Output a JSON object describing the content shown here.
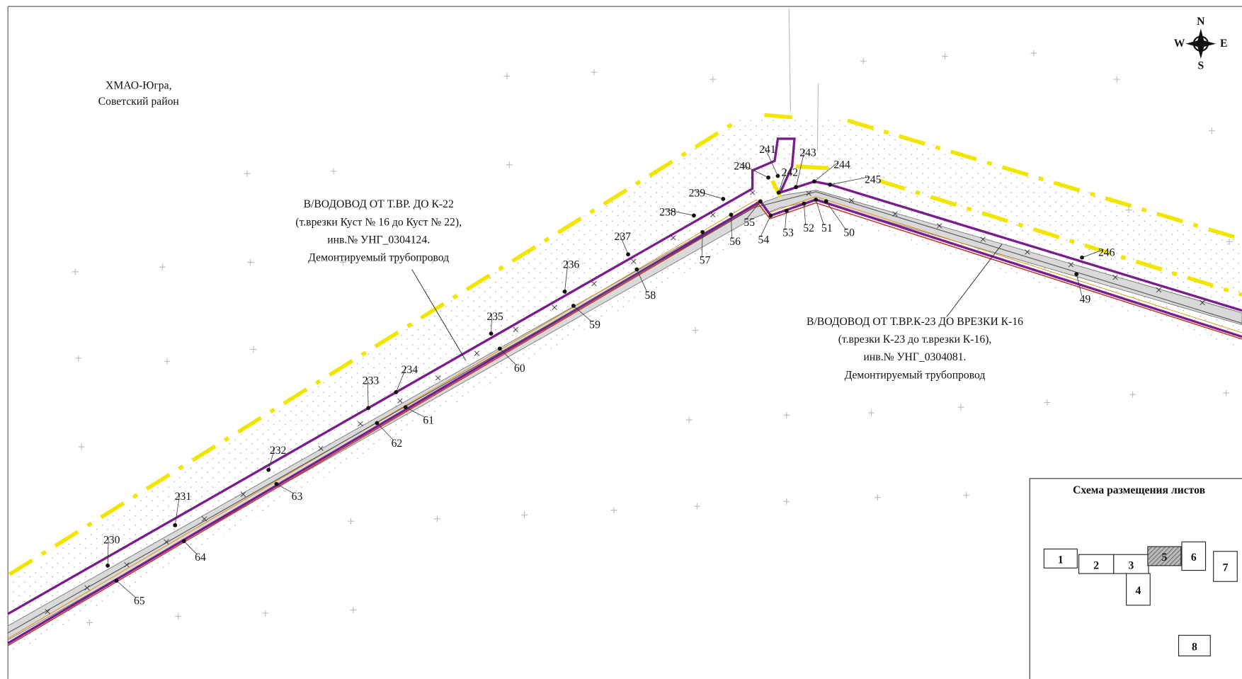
{
  "region": [
    "ХМАО-Югра,",
    "Советский район"
  ],
  "pipelines": [
    {
      "lines": [
        "В/ВОДОВОД ОТ Т.ВР. ДО К-22",
        "(т.врезки Куст № 16 до Куст № 22),",
        "инв.№ УНГ_0304124.",
        "Демонтируемый трубопровод"
      ]
    },
    {
      "lines": [
        "В/ВОДОВОД ОТ Т.ВР.К-23 ДО ВРЕЗКИ К-16",
        "(т.врезки К-23 до т.врезки К-16),",
        "инв.№ УНГ_0304081.",
        "Демонтируемый трубопровод"
      ]
    }
  ],
  "points": [
    "230",
    "231",
    "232",
    "233",
    "234",
    "235",
    "236",
    "237",
    "238",
    "239",
    "240",
    "241",
    "242",
    "243",
    "244",
    "245",
    "246",
    "65",
    "64",
    "63",
    "62",
    "61",
    "60",
    "59",
    "58",
    "57",
    "56",
    "55",
    "54",
    "53",
    "52",
    "51",
    "50",
    "49"
  ],
  "sheet_scheme": {
    "title": "Схема размещения листов",
    "sheets": [
      "1",
      "2",
      "3",
      "4",
      "5",
      "6",
      "7",
      "8"
    ]
  },
  "compass": {
    "n": "N",
    "w": "W",
    "e": "E",
    "s": "S"
  }
}
